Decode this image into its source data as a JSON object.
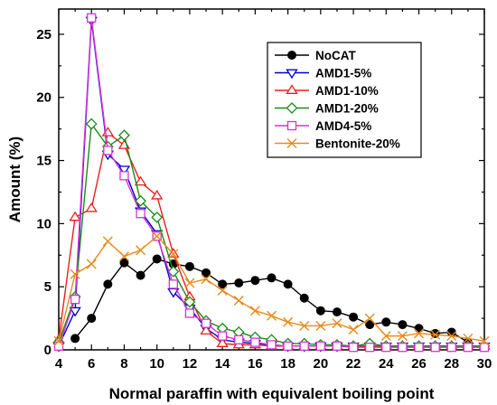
{
  "chart_data": {
    "type": "line",
    "xlabel": "Normal paraffin with equivalent boiling point",
    "ylabel": "Amount (%)",
    "xlim": [
      4,
      30
    ],
    "ylim": [
      0,
      27
    ],
    "xticks": [
      4,
      6,
      8,
      10,
      12,
      14,
      16,
      18,
      20,
      22,
      24,
      26,
      28,
      30
    ],
    "yticks": [
      0,
      5,
      10,
      15,
      20,
      25
    ],
    "grid": false,
    "legend_position": "top-right",
    "series": [
      {
        "name": "NoCAT",
        "color": "#000000",
        "marker": "filled-circle",
        "x": [
          5,
          6,
          7,
          8,
          9,
          10,
          11,
          12,
          13,
          14,
          15,
          16,
          17,
          18,
          19,
          20,
          21,
          22,
          23,
          24,
          25,
          26,
          27,
          28,
          29
        ],
        "y": [
          0.9,
          2.5,
          5.2,
          6.9,
          5.9,
          7.2,
          6.8,
          6.6,
          6.1,
          5.2,
          5.3,
          5.5,
          5.7,
          5.2,
          4.1,
          3.1,
          3.0,
          2.6,
          2.0,
          2.2,
          2.0,
          1.7,
          1.3,
          1.4,
          0.6
        ]
      },
      {
        "name": "AMD1-5%",
        "color": "#0000cc",
        "marker": "down-triangle",
        "x": [
          4,
          5,
          6,
          7,
          8,
          9,
          10,
          11,
          12,
          13,
          14,
          15,
          16,
          17,
          18,
          19,
          20,
          21,
          22,
          23,
          24,
          25,
          26,
          27,
          28,
          29,
          30
        ],
        "y": [
          0.3,
          3.1,
          26.1,
          15.5,
          14.3,
          11.0,
          9.2,
          4.6,
          3.3,
          1.7,
          0.8,
          0.6,
          0.5,
          0.4,
          0.3,
          0.3,
          0.3,
          0.3,
          0.3,
          0.3,
          0.3,
          0.3,
          0.3,
          0.3,
          0.3,
          0.3,
          0.3
        ]
      },
      {
        "name": "AMD1-10%",
        "color": "#e8201c",
        "marker": "up-triangle",
        "x": [
          4,
          5,
          6,
          7,
          8,
          9,
          10,
          11,
          12,
          13,
          14,
          15,
          16,
          17,
          18,
          19,
          20,
          21,
          22,
          23,
          24,
          25,
          26,
          27,
          28,
          29,
          30
        ],
        "y": [
          0.8,
          10.5,
          11.2,
          17.2,
          16.2,
          13.3,
          12.2,
          7.6,
          4.2,
          1.5,
          0.5,
          0.4,
          0.4,
          0.3,
          0.3,
          0.3,
          0.3,
          0.3,
          0.3,
          0.3,
          0.3,
          0.3,
          0.3,
          0.3,
          0.3,
          0.3,
          0.3
        ]
      },
      {
        "name": "AMD1-20%",
        "color": "#1a8c1a",
        "marker": "diamond",
        "x": [
          4,
          5,
          6,
          7,
          8,
          9,
          10,
          11,
          12,
          13,
          14,
          15,
          16,
          17,
          18,
          19,
          20,
          21,
          22,
          23,
          24,
          25,
          26,
          27,
          28,
          29,
          30
        ],
        "y": [
          0.6,
          4.2,
          17.9,
          16.1,
          17.0,
          11.8,
          10.5,
          6.2,
          3.8,
          2.3,
          1.7,
          1.4,
          1.0,
          0.8,
          0.5,
          0.5,
          0.4,
          0.4,
          0.3,
          0.5,
          0.3,
          0.3,
          0.3,
          0.3,
          0.3,
          0.3,
          0.3
        ]
      },
      {
        "name": "AMD4-5%",
        "color": "#d633d6",
        "marker": "square",
        "x": [
          4,
          5,
          6,
          7,
          8,
          9,
          10,
          11,
          12,
          13,
          14,
          15,
          16,
          17,
          18,
          19,
          20,
          21,
          22,
          23,
          24,
          25,
          26,
          27,
          28,
          29,
          30
        ],
        "y": [
          0.3,
          4.0,
          26.3,
          15.8,
          13.8,
          10.8,
          9.0,
          5.2,
          2.9,
          2.1,
          1.1,
          0.8,
          0.6,
          0.4,
          0.3,
          0.3,
          0.3,
          0.3,
          0.2,
          0.2,
          0.2,
          0.2,
          0.2,
          0.2,
          0.2,
          0.2,
          0.2
        ]
      },
      {
        "name": "Bentonite-20%",
        "color": "#e88a1a",
        "marker": "x",
        "x": [
          4,
          5,
          6,
          7,
          8,
          9,
          10,
          11,
          12,
          13,
          14,
          15,
          16,
          17,
          18,
          19,
          20,
          21,
          22,
          23,
          24,
          25,
          26,
          27,
          28,
          29,
          30
        ],
        "y": [
          0.7,
          6.0,
          6.8,
          8.6,
          7.4,
          7.9,
          9.0,
          7.6,
          5.3,
          5.6,
          4.7,
          3.9,
          3.1,
          2.7,
          2.2,
          1.9,
          1.9,
          2.1,
          1.6,
          2.5,
          1.1,
          1.1,
          1.3,
          1.2,
          1.1,
          0.9,
          0.7
        ]
      }
    ]
  }
}
